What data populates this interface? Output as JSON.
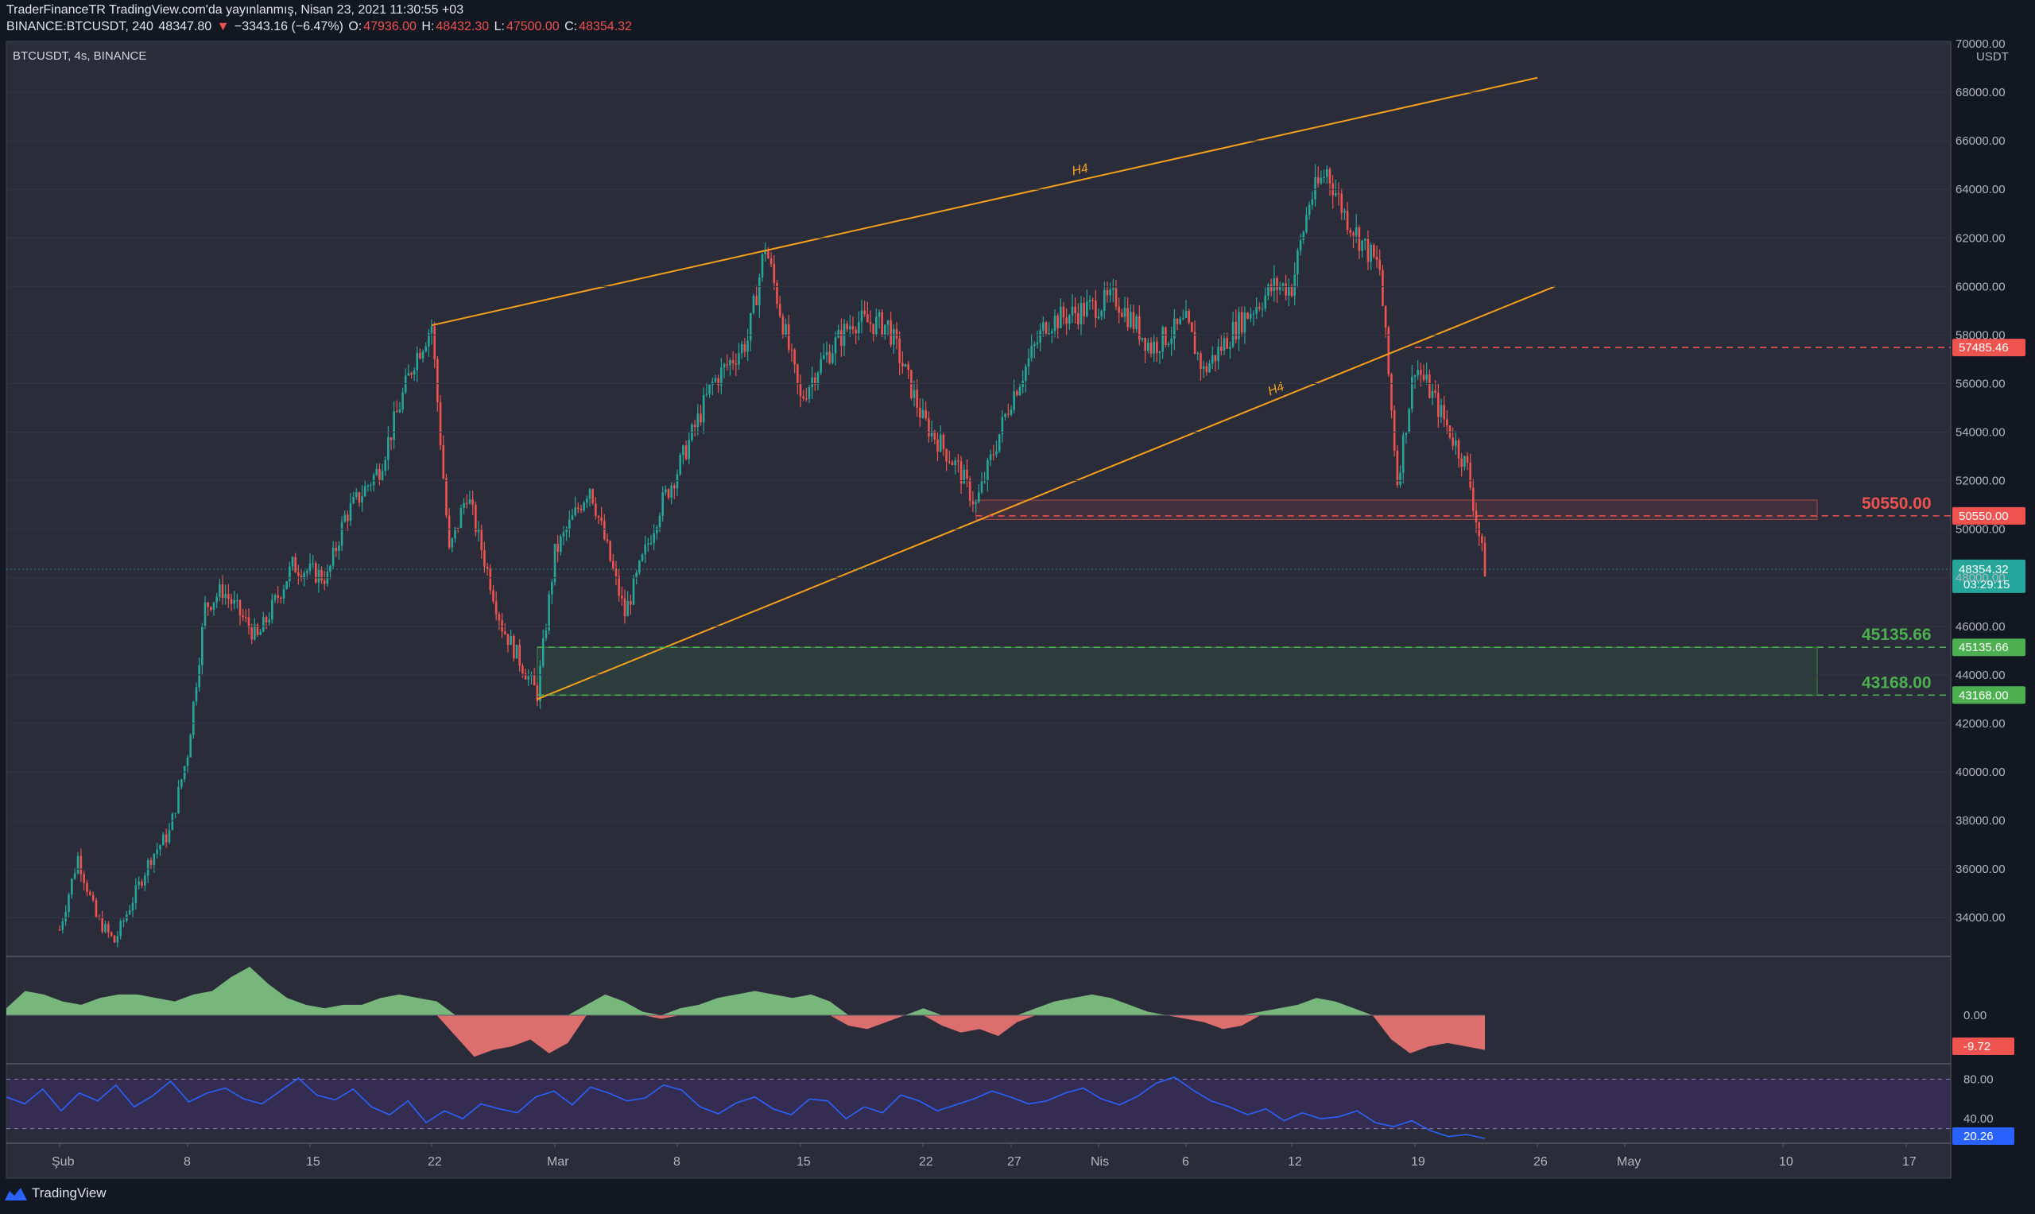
{
  "header": {
    "publisher": "TraderFinanceTR TradingView.com'da yayınlanmış, Nisan 23, 2021 11:30:55 +03",
    "symbol_line": "BINANCE:BTCUSDT, 240",
    "last": "48347.80",
    "change": "−3343.16 (−6.47%)",
    "o_label": "O:",
    "o_value": "47936.00",
    "h_label": "H:",
    "h_value": "48432.30",
    "l_label": "L:",
    "l_value": "47500.00",
    "c_label": "C:",
    "c_value": "48354.32"
  },
  "pane_title": "BTCUSDT, 4s, BINANCE",
  "currency": "USDT",
  "brand": "TradingView",
  "colors": {
    "background": "#2a2d39",
    "up": "#26a69a",
    "down": "#ef5350",
    "trendline": "#f7a01d",
    "resistance": "#ef5350",
    "support": "#4caf50",
    "macd_pos": "#81c784",
    "macd_neg": "#ef7773",
    "rsi_line": "#2962ff",
    "rsi_band": "#3a2d5a"
  },
  "chart_data": [
    {
      "type": "candlestick",
      "title": "BTCUSDT, 4s, BINANCE",
      "ylabel": "USDT",
      "ylim": [
        32500,
        70000
      ],
      "y_ticks": [
        "34000.00",
        "36000.00",
        "38000.00",
        "40000.00",
        "42000.00",
        "44000.00",
        "46000.00",
        "48000.00",
        "50000.00",
        "52000.00",
        "54000.00",
        "56000.00",
        "58000.00",
        "60000.00",
        "62000.00",
        "64000.00",
        "66000.00",
        "68000.00",
        "70000.00"
      ],
      "x_ticks": [
        "Şub",
        "8",
        "15",
        "22",
        "Mar",
        "8",
        "15",
        "22",
        "27",
        "Nis",
        "6",
        "12",
        "19",
        "26",
        "May",
        "10",
        "17"
      ],
      "price_path": [
        {
          "x": "Feb 1",
          "price": 33500
        },
        {
          "x": "Feb 2",
          "price": 36500
        },
        {
          "x": "Feb 3",
          "price": 34000
        },
        {
          "x": "Feb 4",
          "price": 33000
        },
        {
          "x": "Feb 6",
          "price": 36500
        },
        {
          "x": "Feb 7",
          "price": 37500
        },
        {
          "x": "Feb 8",
          "price": 40800
        },
        {
          "x": "Feb 9",
          "price": 46800
        },
        {
          "x": "Feb 10",
          "price": 47500
        },
        {
          "x": "Feb 12",
          "price": 45500
        },
        {
          "x": "Feb 14",
          "price": 48500
        },
        {
          "x": "Feb 16",
          "price": 48000
        },
        {
          "x": "Feb 17",
          "price": 50500
        },
        {
          "x": "Feb 19",
          "price": 52500
        },
        {
          "x": "Feb 21",
          "price": 57000
        },
        {
          "x": "Feb 22",
          "price": 58400
        },
        {
          "x": "Feb 23",
          "price": 49000
        },
        {
          "x": "Feb 24",
          "price": 51500
        },
        {
          "x": "Feb 26",
          "price": 46000
        },
        {
          "x": "Feb 28",
          "price": 43200
        },
        {
          "x": "Mar 1",
          "price": 49000
        },
        {
          "x": "Mar 3",
          "price": 51800
        },
        {
          "x": "Mar 5",
          "price": 46500
        },
        {
          "x": "Mar 7",
          "price": 50900
        },
        {
          "x": "Mar 8",
          "price": 52400
        },
        {
          "x": "Mar 10",
          "price": 56000
        },
        {
          "x": "Mar 12",
          "price": 57800
        },
        {
          "x": "Mar 13",
          "price": 61700
        },
        {
          "x": "Mar 15",
          "price": 55300
        },
        {
          "x": "Mar 16",
          "price": 56700
        },
        {
          "x": "Mar 18",
          "price": 58600
        },
        {
          "x": "Mar 20",
          "price": 58400
        },
        {
          "x": "Mar 22",
          "price": 54500
        },
        {
          "x": "Mar 24",
          "price": 52500
        },
        {
          "x": "Mar 25",
          "price": 51000
        },
        {
          "x": "Mar 27",
          "price": 55400
        },
        {
          "x": "Mar 29",
          "price": 58500
        },
        {
          "x": "Mar 31",
          "price": 59000
        },
        {
          "x": "Apr 2",
          "price": 59500
        },
        {
          "x": "Apr 4",
          "price": 57500
        },
        {
          "x": "Apr 6",
          "price": 58500
        },
        {
          "x": "Apr 7",
          "price": 56500
        },
        {
          "x": "Apr 9",
          "price": 58500
        },
        {
          "x": "Apr 11",
          "price": 60000
        },
        {
          "x": "Apr 12",
          "price": 60000
        },
        {
          "x": "Apr 13",
          "price": 63500
        },
        {
          "x": "Apr 14",
          "price": 64800
        },
        {
          "x": "Apr 15",
          "price": 63000
        },
        {
          "x": "Apr 16",
          "price": 61800
        },
        {
          "x": "Apr 17",
          "price": 60700
        },
        {
          "x": "Apr 18",
          "price": 52000
        },
        {
          "x": "Apr 19",
          "price": 56800
        },
        {
          "x": "Apr 20",
          "price": 55500
        },
        {
          "x": "Apr 21",
          "price": 54000
        },
        {
          "x": "Apr 22",
          "price": 52500
        },
        {
          "x": "Apr 23",
          "price": 48354
        }
      ],
      "trendlines": [
        {
          "label": "H4",
          "from": {
            "x": "Feb 22",
            "price": 58400
          },
          "to": {
            "x": "Apr 26",
            "price": 68600
          }
        },
        {
          "label": "H4",
          "from": {
            "x": "Feb 28",
            "price": 43000
          },
          "to": {
            "x": "Apr 27",
            "price": 60000
          }
        }
      ],
      "levels": [
        {
          "label": "57485.46",
          "price": 57485.46,
          "color": "#ef5350",
          "style": "dashed"
        },
        {
          "label": "50550.00",
          "price": 50550.0,
          "color": "#ef5350",
          "style": "dashed"
        },
        {
          "label": "45135.66",
          "price": 45135.66,
          "color": "#4caf50",
          "style": "dashed"
        },
        {
          "label": "43168.00",
          "price": 43168.0,
          "color": "#4caf50",
          "style": "dashed"
        }
      ],
      "zones": [
        {
          "top": 51200,
          "bottom": 50400,
          "color": "#ef5350"
        },
        {
          "top": 45135.66,
          "bottom": 43168,
          "color": "#4caf50"
        }
      ],
      "last_price": {
        "price": "48354.32",
        "countdown": "03:29:15"
      }
    },
    {
      "type": "area",
      "title": "",
      "ylim": [
        -14,
        20
      ],
      "y_ticks": [
        "0.00"
      ],
      "last_value": "-9.72",
      "series": [
        {
          "values": [
            2,
            7,
            6,
            4,
            3,
            5,
            6,
            6,
            5,
            4,
            6,
            7,
            11,
            14,
            9,
            5,
            3,
            2,
            3,
            3,
            5,
            6,
            5,
            4,
            -6,
            -12,
            -10,
            -9,
            -7,
            -11,
            -8,
            3,
            6,
            4,
            1,
            -1,
            2,
            3,
            5,
            6,
            7,
            6,
            5,
            6,
            4,
            -3,
            -4,
            -2,
            0,
            2,
            -3,
            -5,
            -4,
            -6,
            -2,
            2,
            4,
            5,
            6,
            5,
            3,
            1,
            0,
            -1,
            -2,
            -4,
            -3,
            1,
            2,
            3,
            5,
            4,
            2,
            0,
            -7,
            -11,
            -9,
            -8,
            -9,
            -10
          ]
        }
      ]
    },
    {
      "type": "line",
      "title": "",
      "ylim": [
        20,
        90
      ],
      "y_ticks": [
        "80.00",
        "40.00"
      ],
      "last_value": "20.26",
      "band": [
        30,
        80
      ],
      "series": [
        {
          "values": [
            62,
            55,
            70,
            48,
            66,
            58,
            74,
            52,
            63,
            78,
            57,
            66,
            71,
            60,
            55,
            68,
            81,
            64,
            59,
            70,
            52,
            44,
            58,
            36,
            48,
            40,
            55,
            50,
            46,
            62,
            68,
            54,
            72,
            66,
            58,
            61,
            74,
            69,
            52,
            45,
            56,
            62,
            50,
            44,
            60,
            58,
            40,
            52,
            46,
            64,
            58,
            48,
            54,
            60,
            68,
            62,
            55,
            58,
            66,
            71,
            60,
            54,
            63,
            76,
            82,
            69,
            58,
            52,
            44,
            50,
            38,
            46,
            40,
            42,
            48,
            36,
            32,
            38,
            28,
            22,
            24,
            20
          ]
        }
      ]
    }
  ],
  "date_axis_labels": [
    "Şub",
    "8",
    "15",
    "22",
    "Mar",
    "8",
    "15",
    "22",
    "27",
    "Nis",
    "6",
    "12",
    "19",
    "26",
    "May",
    "10",
    "17"
  ]
}
